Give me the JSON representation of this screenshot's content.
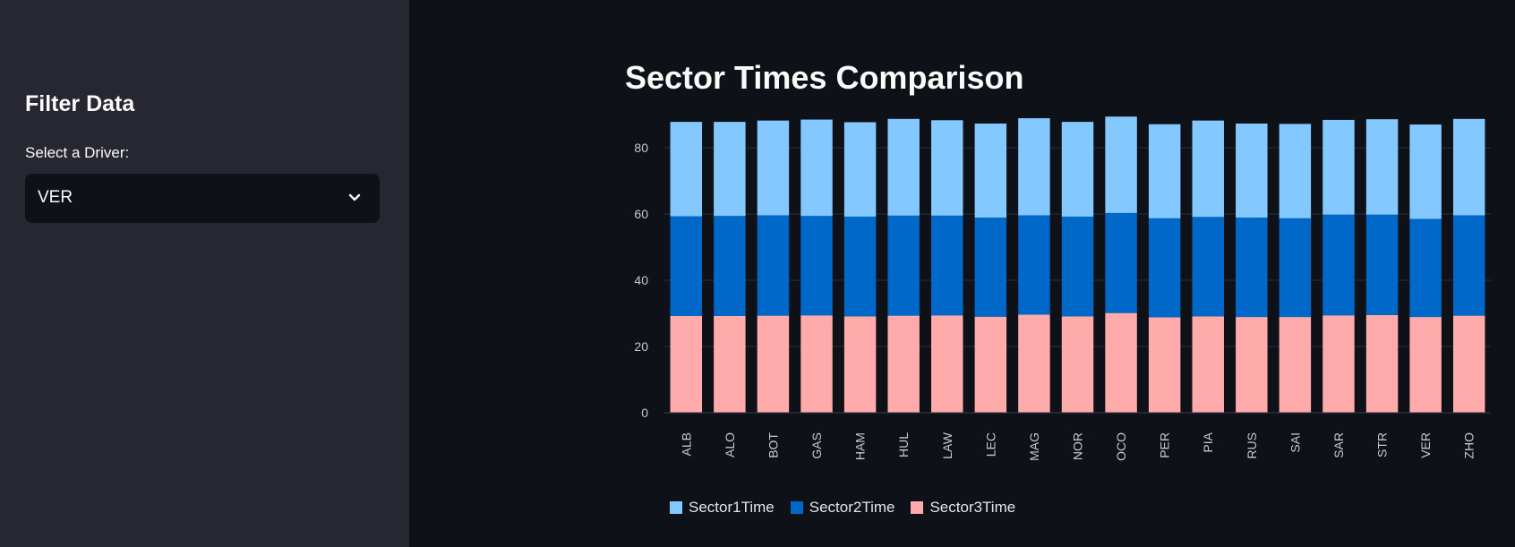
{
  "sidebar": {
    "title": "Filter Data",
    "select_label": "Select a Driver:",
    "selected_driver": "VER"
  },
  "main": {
    "title": "Sector Times Comparison"
  },
  "colors": {
    "sector1": "#83c9ff",
    "sector2": "#0068c9",
    "sector3": "#ffabab"
  },
  "chart_data": {
    "type": "bar",
    "stacked": true,
    "categories": [
      "ALB",
      "ALO",
      "BOT",
      "GAS",
      "HAM",
      "HUL",
      "LAW",
      "LEC",
      "MAG",
      "NOR",
      "OCO",
      "PER",
      "PIA",
      "RUS",
      "SAI",
      "SAR",
      "STR",
      "VER",
      "ZHO"
    ],
    "series": [
      {
        "name": "Sector3Time",
        "values": [
          29.2,
          29.2,
          29.3,
          29.4,
          29.1,
          29.3,
          29.4,
          29.0,
          29.6,
          29.1,
          30.1,
          28.8,
          29.1,
          28.9,
          28.9,
          29.4,
          29.5,
          28.9,
          29.3
        ]
      },
      {
        "name": "Sector2Time",
        "values": [
          30.1,
          30.2,
          30.3,
          30.0,
          30.1,
          30.2,
          30.1,
          29.9,
          30.0,
          30.1,
          30.2,
          29.9,
          30.0,
          30.0,
          29.8,
          30.4,
          30.3,
          29.6,
          30.3
        ]
      },
      {
        "name": "Sector1Time",
        "values": [
          28.5,
          28.4,
          28.6,
          29.1,
          28.5,
          29.2,
          28.8,
          28.4,
          29.3,
          28.6,
          29.1,
          28.4,
          29.1,
          28.4,
          28.5,
          28.6,
          28.8,
          28.5,
          29.1
        ]
      }
    ],
    "y_ticks": [
      0,
      20,
      40,
      60,
      80
    ],
    "ylim": [
      0,
      90
    ],
    "legend_position": "bottom",
    "grid": true
  }
}
